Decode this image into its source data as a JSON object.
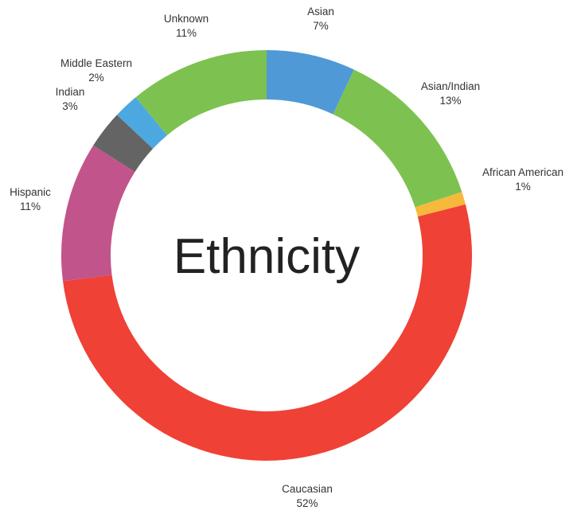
{
  "chart_data": {
    "type": "pie",
    "title": "Ethnicity",
    "unit": "%",
    "slices": [
      {
        "name": "Asian",
        "value": 7,
        "label": "7%",
        "color": "#4f9ad6"
      },
      {
        "name": "Asian/Indian",
        "value": 13,
        "label": "13%",
        "color": "#7dc250"
      },
      {
        "name": "African American",
        "value": 1,
        "label": "1%",
        "color": "#f6b93b"
      },
      {
        "name": "Caucasian",
        "value": 52,
        "label": "52%",
        "color": "#ef4136"
      },
      {
        "name": "Hispanic",
        "value": 11,
        "label": "11%",
        "color": "#c2548c"
      },
      {
        "name": "Indian",
        "value": 3,
        "label": "3%",
        "color": "#646464"
      },
      {
        "name": "Middle Eastern",
        "value": 2,
        "label": "2%",
        "color": "#4da8e0"
      },
      {
        "name": "Unknown",
        "value": 11,
        "label": "11%",
        "color": "#7dc250"
      }
    ]
  }
}
